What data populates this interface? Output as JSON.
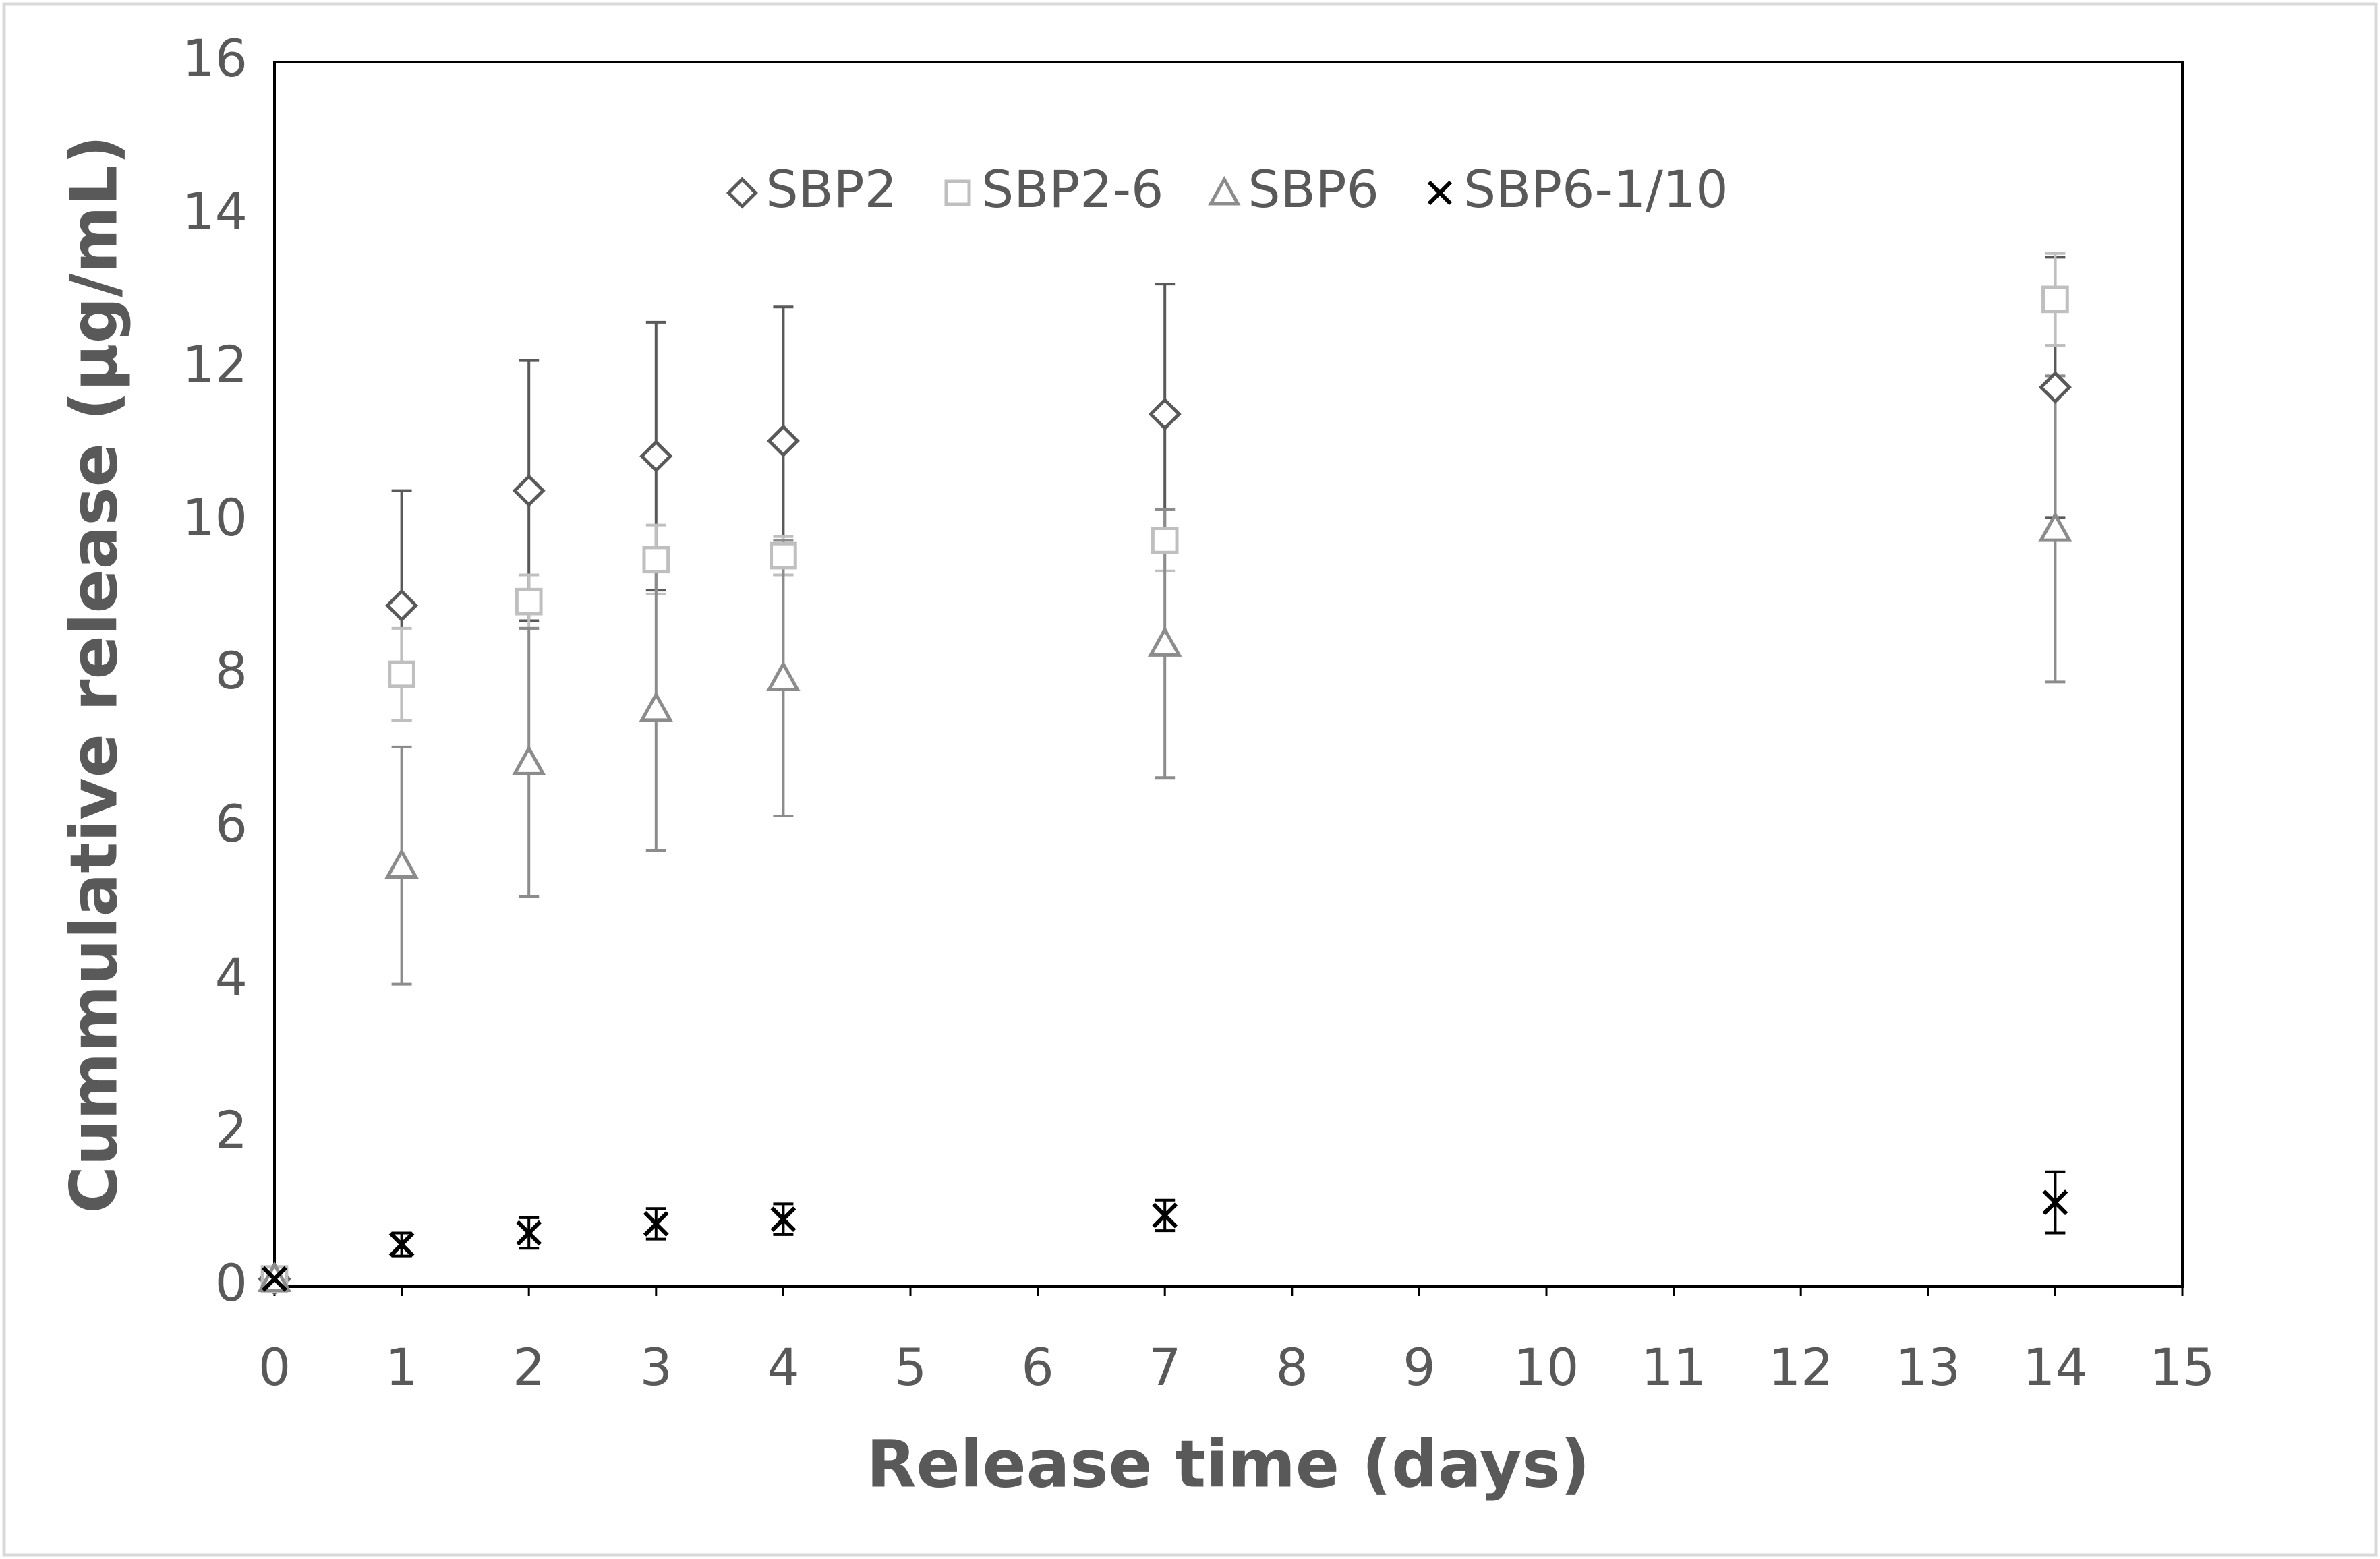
{
  "chart_data": {
    "type": "scatter",
    "xlabel": "Release time (days)",
    "ylabel": "Cummulative release (µg/mL)",
    "x": [
      0,
      1,
      2,
      3,
      4,
      7,
      14
    ],
    "xlim": [
      0,
      15
    ],
    "xticks": [
      0,
      1,
      2,
      3,
      4,
      5,
      6,
      7,
      8,
      9,
      10,
      11,
      12,
      13,
      14,
      15
    ],
    "ylim": [
      0,
      16
    ],
    "yticks": [
      0,
      2,
      4,
      6,
      8,
      10,
      12,
      14,
      16
    ],
    "grid": false,
    "legend": "top",
    "series": [
      {
        "name": "SBP2",
        "color": "#595959",
        "marker": "diamond",
        "values": [
          0.1,
          8.9,
          10.4,
          10.85,
          11.05,
          11.4,
          11.75
        ],
        "errors": [
          0,
          1.5,
          1.7,
          1.75,
          1.75,
          1.7,
          1.7
        ]
      },
      {
        "name": "SBP2-6",
        "color": "#bfbfbf",
        "marker": "square",
        "values": [
          0.1,
          8.0,
          8.95,
          9.5,
          9.55,
          9.75,
          12.9
        ],
        "errors": [
          0,
          0.6,
          0.35,
          0.45,
          0.25,
          0.4,
          0.6
        ]
      },
      {
        "name": "SBP6",
        "color": "#8c8c8c",
        "marker": "triangle",
        "values": [
          0.1,
          5.5,
          6.85,
          7.55,
          7.95,
          8.4,
          9.9
        ],
        "errors": [
          0,
          1.55,
          1.75,
          1.85,
          1.8,
          1.75,
          2.0
        ]
      },
      {
        "name": "SBP6-1/10",
        "color": "#000000",
        "marker": "x",
        "values": [
          0.1,
          0.55,
          0.7,
          0.82,
          0.88,
          0.93,
          1.1
        ],
        "errors": [
          0,
          0.15,
          0.2,
          0.2,
          0.2,
          0.2,
          0.4
        ]
      }
    ]
  }
}
